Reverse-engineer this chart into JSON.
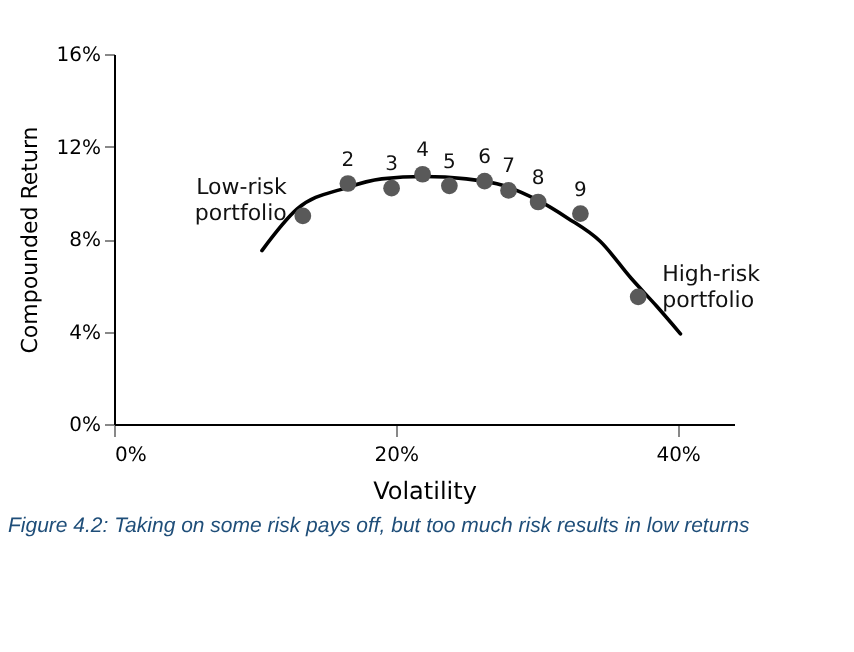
{
  "chart_data": {
    "type": "scatter",
    "xlabel": "Volatility",
    "ylabel": "Compounded Return",
    "xlim": [
      0,
      44
    ],
    "ylim": [
      0,
      16
    ],
    "xticks": [
      {
        "value": 0,
        "label": "0%"
      },
      {
        "value": 20,
        "label": "20%"
      },
      {
        "value": 40,
        "label": "40%"
      }
    ],
    "yticks": [
      {
        "value": 0,
        "label": "0%"
      },
      {
        "value": 4,
        "label": "4%"
      },
      {
        "value": 8,
        "label": "8%"
      },
      {
        "value": 12,
        "label": "12%"
      },
      {
        "value": 16,
        "label": "16%"
      }
    ],
    "grid": false,
    "marker": "circle",
    "series": [
      {
        "color": "#595959",
        "x": [
          13.4,
          16.6,
          19.7,
          21.9,
          23.8,
          26.3,
          28.0,
          30.1,
          33.1,
          37.2
        ],
        "values": [
          9.0,
          10.4,
          10.2,
          10.8,
          10.3,
          10.5,
          10.1,
          9.6,
          9.1,
          5.5
        ]
      },
      {
        "type": "line",
        "color": "#000000",
        "marker": "none",
        "x": [
          10.5,
          13,
          16.4,
          19,
          22,
          25,
          27.7,
          30,
          32.2,
          34.5,
          36.7,
          38.5,
          40.2
        ],
        "values": [
          7.5,
          9.3,
          10.2,
          10.6,
          10.7,
          10.6,
          10.3,
          9.7,
          8.9,
          7.9,
          6.3,
          5.1,
          3.9
        ]
      }
    ],
    "annotations": [
      {
        "text": "Low-risk portfolio",
        "x": 13.4,
        "y": 9.0
      },
      {
        "text": "2",
        "x": 16.6,
        "y": 10.4
      },
      {
        "text": "3",
        "x": 19.7,
        "y": 10.2
      },
      {
        "text": "4",
        "x": 21.9,
        "y": 10.8
      },
      {
        "text": "5",
        "x": 23.8,
        "y": 10.3
      },
      {
        "text": "6",
        "x": 26.3,
        "y": 10.5
      },
      {
        "text": "7",
        "x": 28.0,
        "y": 10.1
      },
      {
        "text": "8",
        "x": 30.1,
        "y": 9.6
      },
      {
        "text": "9",
        "x": 33.1,
        "y": 9.1
      },
      {
        "text": "High-risk portfolio",
        "x": 37.2,
        "y": 5.5
      },
      "Figure 4.2: Taking on some risk pays off, but too much risk results in low returns"
    ]
  }
}
